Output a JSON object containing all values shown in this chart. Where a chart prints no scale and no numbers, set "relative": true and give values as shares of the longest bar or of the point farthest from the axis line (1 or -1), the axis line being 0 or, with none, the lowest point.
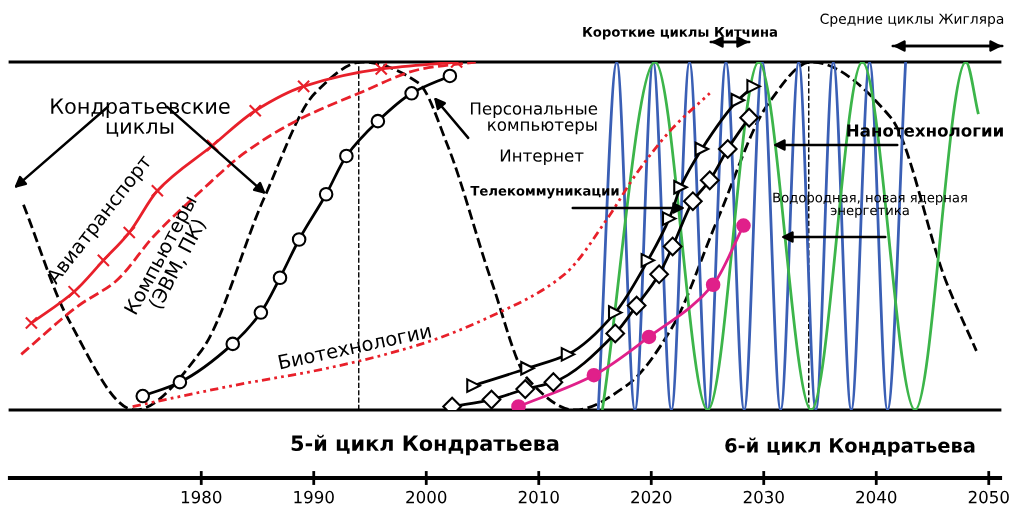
{
  "chart_data": {
    "type": "line",
    "relative": true,
    "xlim": [
      1963,
      2051
    ],
    "xticks": [
      1980,
      1990,
      2000,
      2010,
      2020,
      2030,
      2040,
      2050
    ],
    "ref_lines": [
      {
        "axis": "x",
        "value": 1994,
        "color": "#000000",
        "line_style": "dashed"
      },
      {
        "axis": "x",
        "value": 2034,
        "color": "#000000",
        "line_style": "dashed"
      }
    ],
    "annotations": [
      "Кондратьевские\nциклы",
      "Авиатранспорт",
      "Компьютеры\n(ЭВМ, ПК)",
      "Биотехнологии",
      "Персональные\nкомпьютеры",
      "Интернет",
      "Телекоммуникации",
      "Нанотехнологии",
      "Водородная, новая ядерная\nэнергетика",
      "Короткие циклы Китчина",
      "Средние циклы Жигляра",
      "5-й цикл Кондратьева",
      "6-й цикл Кондратьева"
    ],
    "series": [
      {
        "color": "#000000",
        "line_style": "dashed",
        "marker": "none",
        "x": [
          1964.2,
          1968.2,
          1974.1,
          1980.0,
          1985.6,
          1990.1,
          1994.3,
          1999.3,
          2001.9,
          2005.8,
          2009.0,
          2013.2,
          2017.8,
          2021.9,
          2025.8,
          2030.4,
          2034.2,
          2041.3,
          2046.2,
          2048.9
        ],
        "values": [
          0.59,
          0.26,
          0.0,
          0.17,
          0.61,
          0.91,
          1.0,
          0.94,
          0.76,
          0.37,
          0.09,
          0.0,
          0.07,
          0.24,
          0.54,
          0.88,
          1.0,
          0.84,
          0.37,
          0.17
        ]
      },
      {
        "color": "#3a5fb5",
        "line_style": "solid",
        "marker": "none",
        "x": [
          2015.29,
          2016.94,
          2018.55,
          2020.17,
          2021.79,
          2023.4,
          2025.02,
          2026.64,
          2028.26,
          2029.87,
          2031.5,
          2033.11,
          2034.63,
          2036.18,
          2037.78,
          2039.41,
          2041.0,
          2042.61
        ],
        "values": [
          0,
          1,
          0,
          1,
          0,
          1,
          0,
          1,
          0,
          1,
          0,
          1,
          0,
          1,
          0,
          1,
          0,
          1
        ]
      },
      {
        "color": "#3cb54a",
        "line_style": "solid",
        "marker": "none",
        "x": [
          2015.65,
          2020.34,
          2025.02,
          2029.55,
          2034.22,
          2038.76,
          2043.45,
          2047.96,
          2049.08
        ],
        "values": [
          0,
          1,
          0,
          1,
          0,
          1,
          0,
          1,
          0.85
        ]
      },
      {
        "color": "#e8202a",
        "line_style": "solid",
        "marker": "cross",
        "x": [
          1964.9,
          1968.7,
          1971.3,
          1973.6,
          1976.1,
          1981.0,
          1984.8,
          1989.1,
          1996.0,
          2002.7
        ],
        "values": [
          0.25,
          0.34,
          0.43,
          0.51,
          0.63,
          0.76,
          0.86,
          0.93,
          0.98,
          1.0
        ]
      },
      {
        "color": "#e8202a",
        "line_style": "dashed",
        "marker": "none",
        "x": [
          1964.0,
          1969.1,
          1972.4,
          1975.8,
          1980.0,
          1983.9,
          1988.4,
          1994.0,
          1999.6,
          2004.4
        ],
        "values": [
          0.16,
          0.3,
          0.37,
          0.5,
          0.63,
          0.74,
          0.83,
          0.91,
          0.98,
          1.0
        ]
      },
      {
        "color": "#000000",
        "line_style": "solid",
        "marker": "circle",
        "x": [
          1974.8,
          1978.1,
          1982.8,
          1985.3,
          1987.0,
          1988.7,
          1991.1,
          1992.9,
          1995.7,
          1998.7,
          2002.1
        ],
        "values": [
          0.04,
          0.08,
          0.19,
          0.28,
          0.38,
          0.49,
          0.62,
          0.73,
          0.83,
          0.91,
          0.96
        ]
      },
      {
        "color": "#e8202a",
        "line_style": "dotted",
        "marker": "none",
        "x": [
          1973.9,
          1982.8,
          1991.2,
          1999.6,
          2005.8,
          2012.3,
          2016.1,
          2018.7,
          2021.9,
          2025.2
        ],
        "values": [
          0.01,
          0.07,
          0.12,
          0.19,
          0.27,
          0.39,
          0.55,
          0.68,
          0.81,
          0.91
        ]
      },
      {
        "color": "#000000",
        "line_style": "solid",
        "marker": "triangle",
        "x": [
          2004.2,
          2009.0,
          2012.6,
          2016.8,
          2019.7,
          2021.6,
          2022.6,
          2024.5,
          2027.7,
          2029.1
        ],
        "values": [
          0.07,
          0.12,
          0.16,
          0.28,
          0.43,
          0.55,
          0.64,
          0.75,
          0.89,
          0.93
        ]
      },
      {
        "color": "#000000",
        "line_style": "solid",
        "marker": "diamond",
        "x": [
          2002.3,
          2005.8,
          2008.8,
          2011.3,
          2016.8,
          2018.7,
          2020.7,
          2021.9,
          2023.7,
          2025.2,
          2026.8,
          2028.7
        ],
        "values": [
          0.01,
          0.03,
          0.06,
          0.08,
          0.22,
          0.3,
          0.39,
          0.47,
          0.6,
          0.66,
          0.75,
          0.84
        ]
      },
      {
        "color": "#e0208a",
        "line_style": "solid",
        "marker": "circle",
        "x": [
          2008.2,
          2014.9,
          2019.8,
          2025.5,
          2028.2
        ],
        "values": [
          0.01,
          0.1,
          0.21,
          0.36,
          0.53
        ]
      }
    ]
  }
}
